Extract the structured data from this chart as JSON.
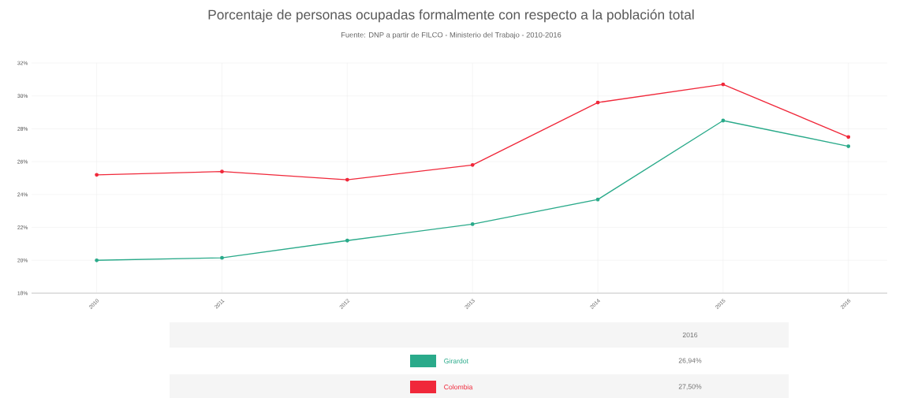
{
  "chart_data": {
    "type": "line",
    "title": "Porcentaje de personas ocupadas formalmente con respecto a la población total",
    "subtitle": "Fuente: DNP a partir de FILCO - Ministerio del Trabajo - 2010-2016",
    "categories": [
      "2010",
      "2011",
      "2012",
      "2013",
      "2014",
      "2015",
      "2016"
    ],
    "series": [
      {
        "name": "Girardot",
        "color": "#2aaa8a",
        "values": [
          20.0,
          20.15,
          21.2,
          22.2,
          23.7,
          28.5,
          26.94
        ]
      },
      {
        "name": "Colombia",
        "color": "#f0283a",
        "values": [
          25.2,
          25.4,
          24.9,
          25.8,
          29.6,
          30.7,
          27.5
        ]
      }
    ],
    "annotations": [
      "26,94%",
      "27,50%"
    ],
    "legend_title": "2016",
    "ylim": [
      18,
      32
    ],
    "yticks": [
      {
        "value": 18,
        "label": "18%"
      },
      {
        "value": 20,
        "label": "20%"
      },
      {
        "value": 22,
        "label": "22%"
      },
      {
        "value": 24,
        "label": "24%"
      },
      {
        "value": 26,
        "label": "26%"
      },
      {
        "value": 28,
        "label": "28%"
      },
      {
        "value": 30,
        "label": "30%"
      },
      {
        "value": 32,
        "label": "32%"
      }
    ],
    "grid": true,
    "legend": "bottom",
    "marker": "circle",
    "line_style": "solid"
  }
}
